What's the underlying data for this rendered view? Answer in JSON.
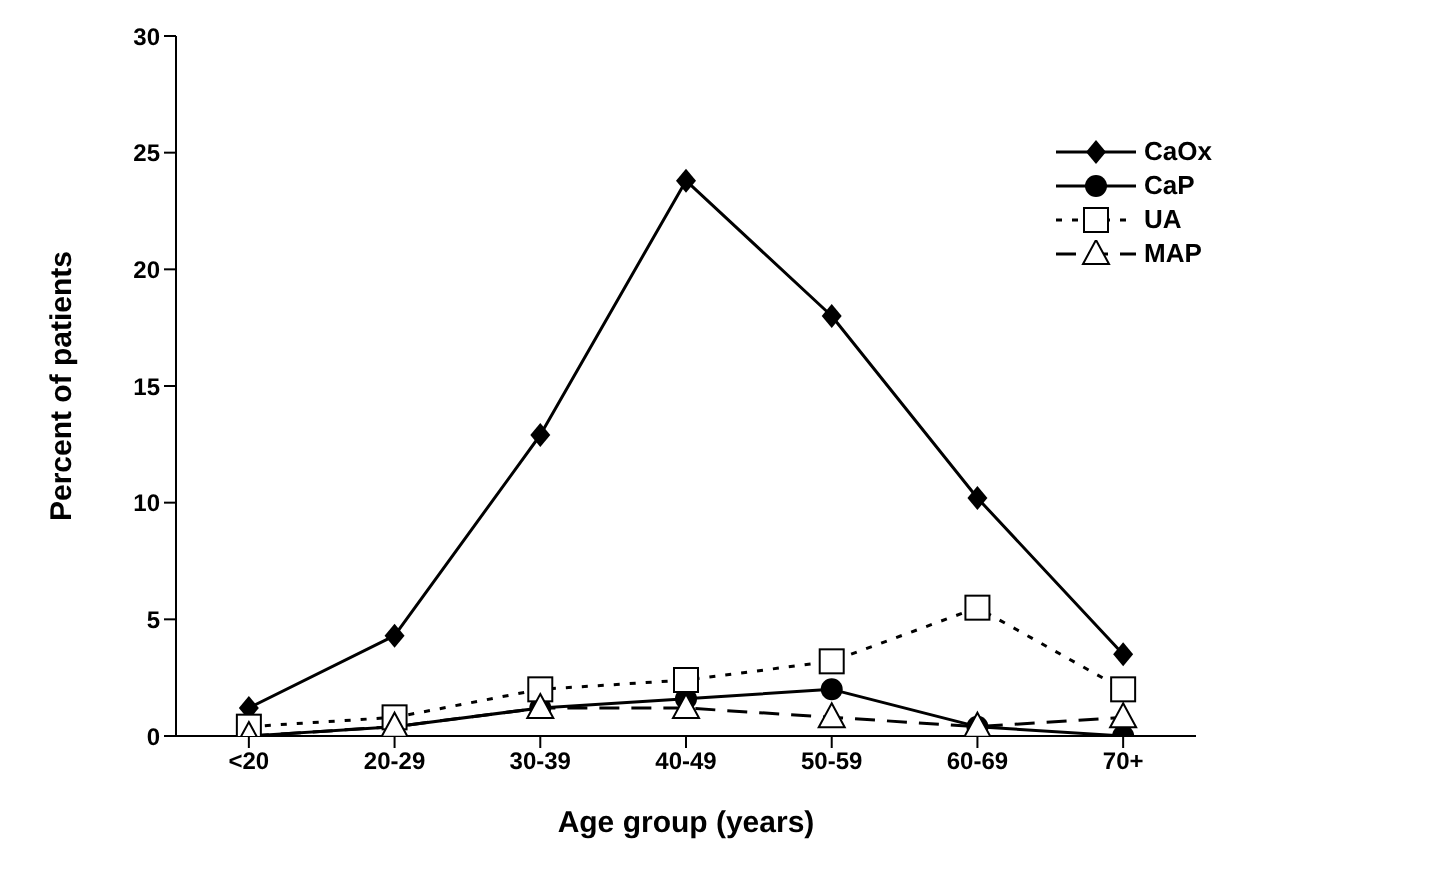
{
  "chart_data": {
    "type": "line",
    "xlabel": "Age group (years)",
    "ylabel": "Percent of patients",
    "categories": [
      "<20",
      "20-29",
      "30-39",
      "40-49",
      "50-59",
      "60-69",
      "70+"
    ],
    "series": [
      {
        "name": "CaOx",
        "color": "#000000",
        "marker": "diamond",
        "line_style": "solid",
        "values": [
          1.2,
          4.3,
          12.9,
          23.8,
          18.0,
          10.2,
          3.5
        ]
      },
      {
        "name": "CaP",
        "color": "#000000",
        "marker": "circle",
        "line_style": "solid",
        "values": [
          0,
          0.4,
          1.2,
          1.6,
          2.0,
          0.4,
          0
        ]
      },
      {
        "name": "UA",
        "color": "#000000",
        "marker": "square",
        "line_style": "dotted",
        "values": [
          0.4,
          0.8,
          2.0,
          2.4,
          3.2,
          5.5,
          2.0
        ]
      },
      {
        "name": "MAP",
        "color": "#000000",
        "marker": "triangle",
        "line_style": "dashed",
        "values": [
          0,
          0.4,
          1.2,
          1.2,
          0.8,
          0.4,
          0.8
        ]
      }
    ],
    "ylim": [
      0,
      30
    ],
    "yticks": [
      0,
      5,
      10,
      15,
      20,
      25,
      30
    ],
    "grid": false,
    "legend": "top right"
  }
}
